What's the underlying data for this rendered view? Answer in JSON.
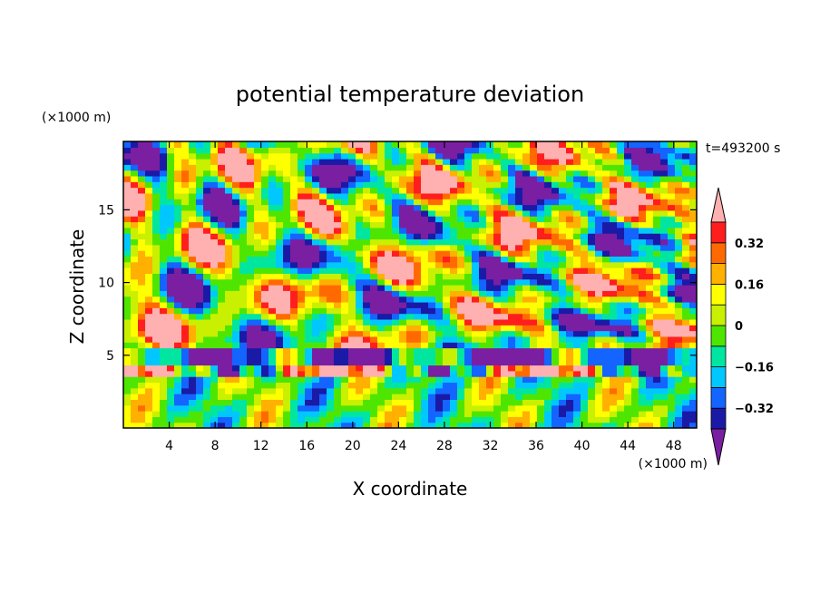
{
  "chart_data": {
    "type": "heatmap",
    "title": "potential temperature deviation",
    "xlabel": "X coordinate",
    "ylabel": "Z coordinate",
    "x_unit": "(×1000 m)",
    "y_unit": "(×1000 m)",
    "time_label": "t=493200 s",
    "xlim": [
      0,
      50
    ],
    "ylim": [
      0,
      19.7
    ],
    "x_ticks": [
      4,
      8,
      12,
      16,
      20,
      24,
      28,
      32,
      36,
      40,
      44,
      48
    ],
    "x_tick_labels": [
      "4",
      "8",
      "12",
      "16",
      "20",
      "24",
      "28",
      "32",
      "36",
      "40",
      "44",
      "48"
    ],
    "y_ticks": [
      5,
      10,
      15
    ],
    "y_tick_labels": [
      "5",
      "10",
      "15"
    ],
    "colorbar": {
      "levels": [
        -0.4,
        -0.32,
        -0.24,
        -0.16,
        -0.08,
        0,
        0.08,
        0.16,
        0.24,
        0.32,
        0.4
      ],
      "colors": [
        "#7a1fa2",
        "#1a1aa6",
        "#1464ff",
        "#00c8ff",
        "#00e6a0",
        "#4ee600",
        "#c8f000",
        "#ffff00",
        "#ffb000",
        "#ff6a00",
        "#ff1e1e",
        "#ffb0b0"
      ],
      "tick_values": [
        -0.32,
        -0.16,
        0,
        0.16,
        0.32
      ],
      "tick_labels": [
        "−0.32",
        "−0.16",
        "0",
        "0.16",
        "0.32"
      ]
    }
  }
}
